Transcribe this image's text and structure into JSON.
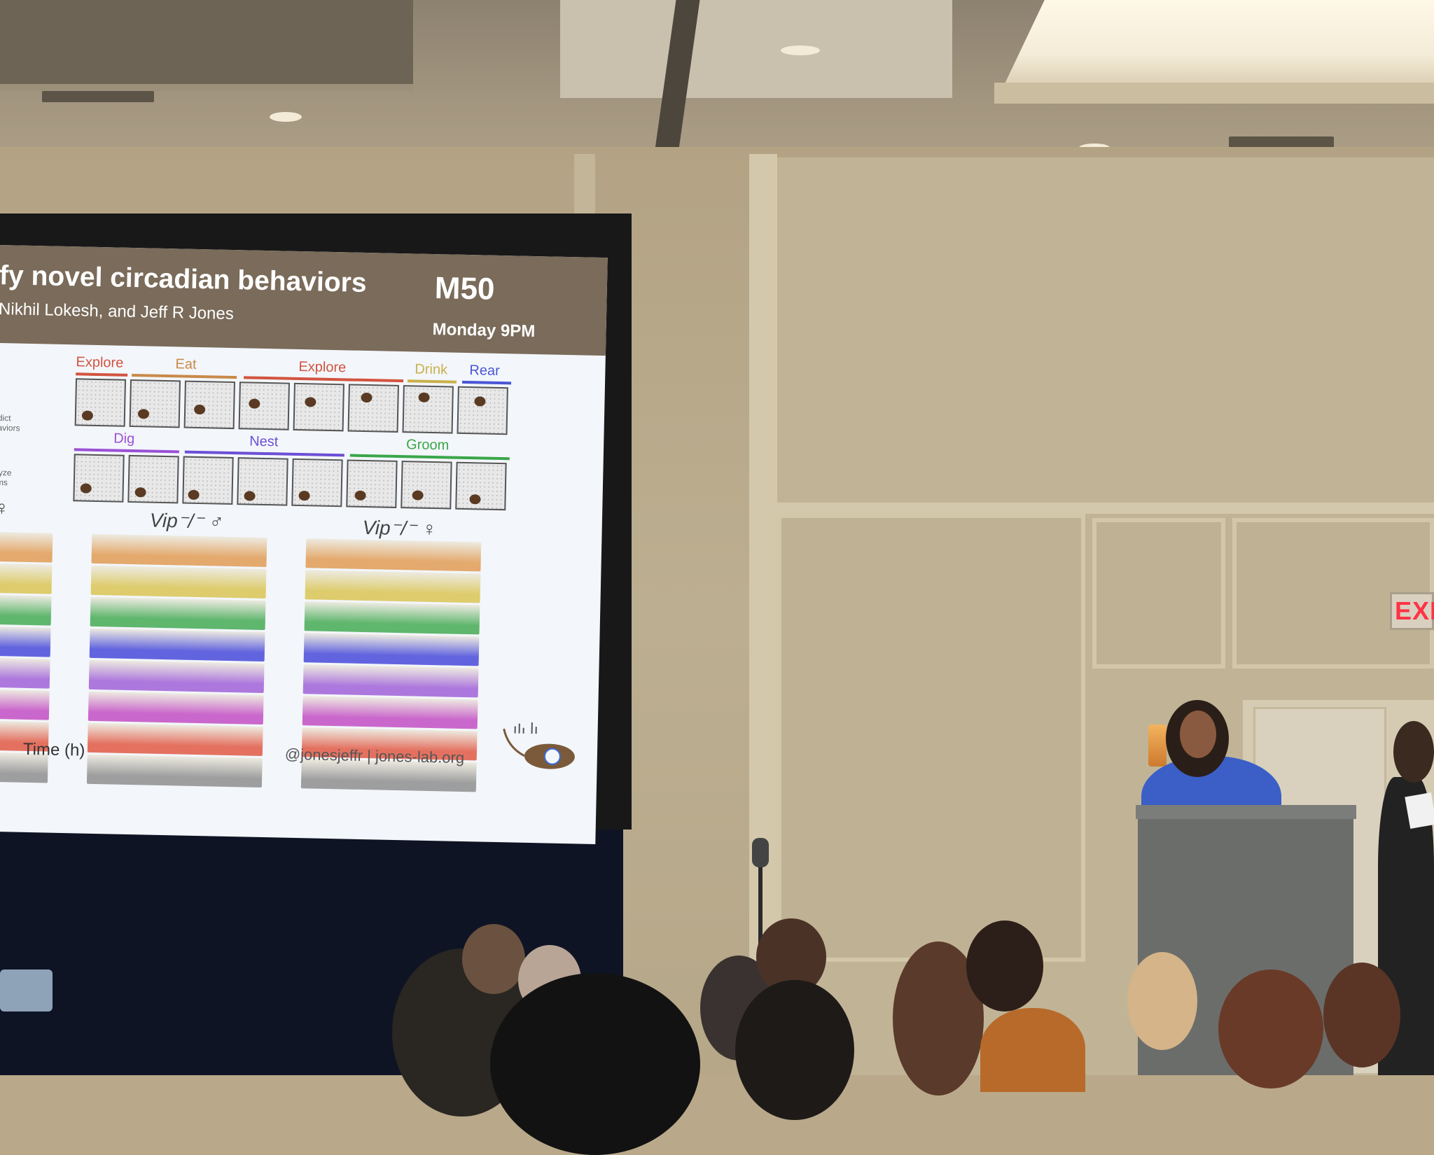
{
  "slide": {
    "title": "fy novel circadian behaviors",
    "authors": "Nikhil Lokesh, and Jeff R Jones",
    "poster_code": "M50",
    "poster_time": "Monday 9PM",
    "behaviors_row1": [
      "Explore",
      "Eat",
      "Explore",
      "Drink",
      "Rear"
    ],
    "behaviors_row2": [
      "Dig",
      "Nest",
      "Groom"
    ],
    "side_notes": [
      "dict\naviors",
      "lyze\nms"
    ],
    "genotype_left_symbol": "♀",
    "genotype_middle": "Vip⁻/⁻ ♂",
    "genotype_right": "Vip⁻/⁻ ♀",
    "x_axis_label": "Time (h)",
    "contact": "@jonesjeffr | jones-lab.org",
    "colors": {
      "explore": "#d2543f",
      "eat": "#c98a4a",
      "drink": "#c9b04a",
      "rear": "#4a55d6",
      "dig": "#9b50d6",
      "nest": "#6b4fd6",
      "groom": "#3aa64a",
      "header_bg": "#7a6b5a",
      "trace_orange": "#e0964a",
      "trace_yellow": "#d8c24a",
      "trace_green": "#3aa64a",
      "trace_blue": "#3d3fd8",
      "trace_purple": "#9b58d6",
      "trace_magenta": "#c043c0",
      "trace_red": "#e0503a",
      "trace_gray": "#888888"
    }
  },
  "room": {
    "exit_sign": "EXI"
  }
}
